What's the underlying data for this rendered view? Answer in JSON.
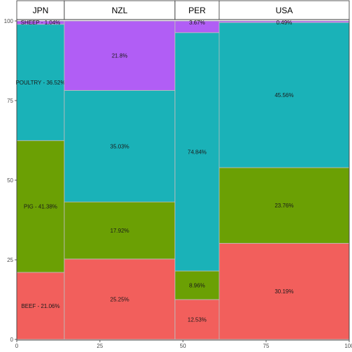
{
  "chart_data": {
    "type": "mosaic",
    "x_ticks": [
      0,
      25,
      50,
      75,
      100
    ],
    "y_ticks": [
      0,
      25,
      50,
      75,
      100
    ],
    "xlim": [
      0,
      100
    ],
    "ylim": [
      0,
      100
    ],
    "grid": false,
    "legend": "none",
    "categories_order_bottom_to_top": [
      "BEEF",
      "PIG",
      "POULTRY",
      "SHEEP"
    ],
    "colors": {
      "BEEF": "#f25f5c",
      "PIG": "#6ba004",
      "POULTRY": "#1ab2b8",
      "SHEEP": "#b15ef5"
    },
    "countries": [
      {
        "name": "JPN",
        "x_start": 0,
        "x_end": 14.3,
        "segments": [
          {
            "category": "BEEF",
            "value": 21.06,
            "label": "BEEF - 21.06%"
          },
          {
            "category": "PIG",
            "value": 41.38,
            "label": "PIG - 41.38%"
          },
          {
            "category": "POULTRY",
            "value": 36.52,
            "label": "POULTRY - 36.52%"
          },
          {
            "category": "SHEEP",
            "value": 1.04,
            "label": "SHEEP - 1.04%"
          }
        ]
      },
      {
        "name": "NZL",
        "x_start": 14.3,
        "x_end": 47.6,
        "segments": [
          {
            "category": "BEEF",
            "value": 25.25,
            "label": "25.25%"
          },
          {
            "category": "PIG",
            "value": 17.92,
            "label": "17.92%"
          },
          {
            "category": "POULTRY",
            "value": 35.03,
            "label": "35.03%"
          },
          {
            "category": "SHEEP",
            "value": 21.8,
            "label": "21.8%"
          }
        ]
      },
      {
        "name": "PER",
        "x_start": 47.6,
        "x_end": 60.9,
        "segments": [
          {
            "category": "BEEF",
            "value": 12.53,
            "label": "12.53%"
          },
          {
            "category": "PIG",
            "value": 8.96,
            "label": "8.96%"
          },
          {
            "category": "POULTRY",
            "value": 74.84,
            "label": "74.84%"
          },
          {
            "category": "SHEEP",
            "value": 3.67,
            "label": "3.67%"
          }
        ]
      },
      {
        "name": "USA",
        "x_start": 60.9,
        "x_end": 100,
        "segments": [
          {
            "category": "BEEF",
            "value": 30.19,
            "label": "30.19%"
          },
          {
            "category": "PIG",
            "value": 23.76,
            "label": "23.76%"
          },
          {
            "category": "POULTRY",
            "value": 45.56,
            "label": "45.56%"
          },
          {
            "category": "SHEEP",
            "value": 0.49,
            "label": "0.49%"
          }
        ]
      }
    ]
  }
}
